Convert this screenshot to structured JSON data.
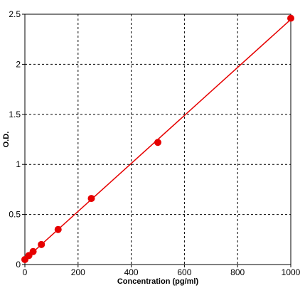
{
  "chart_data": {
    "type": "scatter",
    "title": "",
    "xlabel": "Concentration (pg/ml)",
    "ylabel": "O.D.",
    "xlim": [
      0,
      1000
    ],
    "ylim": [
      0,
      2.5
    ],
    "x_ticks": [
      0,
      200,
      400,
      600,
      800,
      1000
    ],
    "x_tick_labels": [
      "0",
      "200",
      "400",
      "600",
      "800",
      "1000"
    ],
    "y_ticks": [
      0,
      0.5,
      1,
      1.5,
      2,
      2.5
    ],
    "y_tick_labels": [
      "0",
      "0.5",
      "1",
      "1.5",
      "2",
      "2.5"
    ],
    "grid": true,
    "grid_style": "dashed",
    "series": [
      {
        "x": [
          0,
          15,
          31,
          62,
          125,
          250,
          500,
          1000
        ],
        "y": [
          0.05,
          0.09,
          0.13,
          0.2,
          0.35,
          0.66,
          1.22,
          2.46
        ],
        "marker": "circle",
        "fit": "linear"
      }
    ],
    "colors": {
      "series": "#e60000",
      "grid": "#000000",
      "axis": "#000000",
      "background": "#ffffff"
    }
  }
}
